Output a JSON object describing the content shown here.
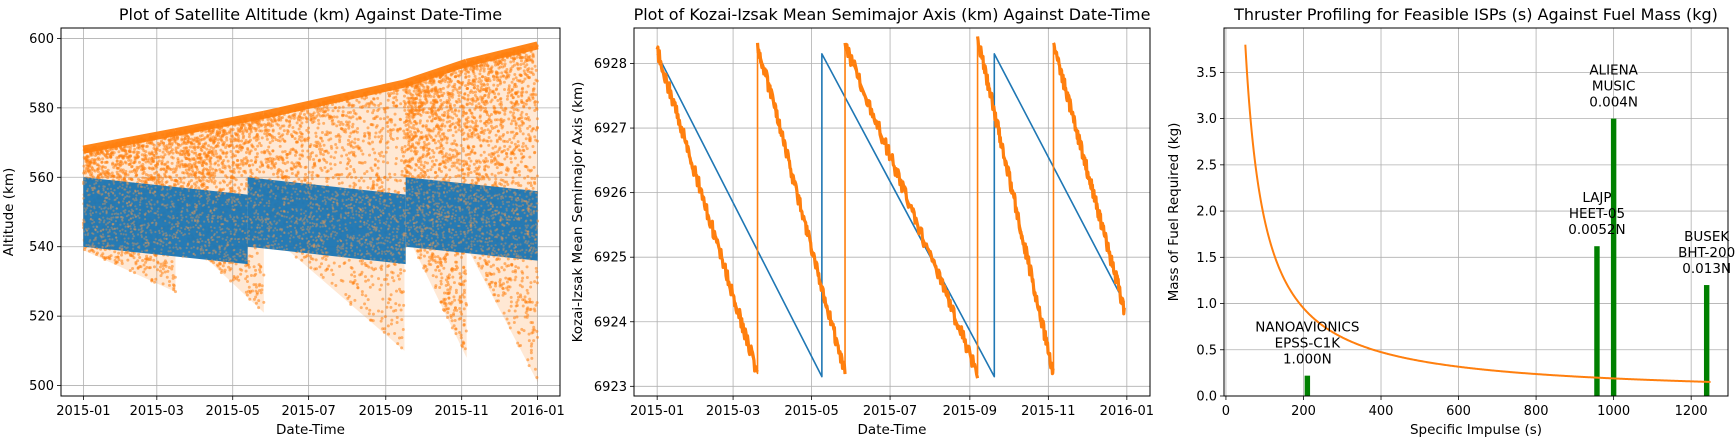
{
  "chart_data": [
    {
      "type": "scatter",
      "title": "Plot of Satellite Altitude (km) Against Date-Time",
      "xlabel": "Date-Time",
      "ylabel": "Altitude (km)",
      "xlim": [
        "2014-12-14",
        "2016-01-19"
      ],
      "ylim": [
        497,
        603
      ],
      "xticks": [
        "2015-01",
        "2015-03",
        "2015-05",
        "2015-07",
        "2015-09",
        "2015-11",
        "2016-01"
      ],
      "yticks": [
        500,
        520,
        540,
        560,
        580,
        600
      ],
      "grid": true,
      "series": [
        {
          "color": "#ff7f0e",
          "style": "scatter-band",
          "segments": [
            {
              "x": [
                "2015-01-01",
                "2015-03-16"
              ],
              "upper": [
                568,
                573
              ],
              "lower": [
                539,
                527
              ]
            },
            {
              "x": [
                "2015-03-16",
                "2015-05-26"
              ],
              "upper": [
                573,
                578
              ],
              "lower": [
                545,
                521
              ]
            },
            {
              "x": [
                "2015-05-26",
                "2015-09-16"
              ],
              "upper": [
                578,
                587
              ],
              "lower": [
                545,
                510
              ]
            },
            {
              "x": [
                "2015-09-16",
                "2015-11-05"
              ],
              "upper": [
                587,
                593
              ],
              "lower": [
                545,
                508
              ]
            },
            {
              "x": [
                "2015-11-05",
                "2016-01-01"
              ],
              "upper": [
                593,
                598
              ],
              "lower": [
                540,
                501
              ]
            }
          ]
        },
        {
          "color": "#1f77b4",
          "style": "band",
          "segments": [
            {
              "x": [
                "2015-01-01",
                "2015-05-13"
              ],
              "upper": [
                560,
                555
              ],
              "lower": [
                540,
                535
              ]
            },
            {
              "x": [
                "2015-05-13",
                "2015-09-17"
              ],
              "upper": [
                560,
                555
              ],
              "lower": [
                540,
                535
              ]
            },
            {
              "x": [
                "2015-09-17",
                "2016-01-01"
              ],
              "upper": [
                560,
                556
              ],
              "lower": [
                540,
                536
              ]
            }
          ]
        }
      ]
    },
    {
      "type": "line",
      "title": "Plot of Kozai-Izsak Mean Semimajor Axis (km) Against Date-Time",
      "xlabel": "Date-Time",
      "ylabel": "Kozai-Izsak Mean Semimajor Axis (km)",
      "xlim": [
        "2014-12-14",
        "2016-01-19"
      ],
      "ylim": [
        6922.85,
        6928.55
      ],
      "xticks": [
        "2015-01",
        "2015-03",
        "2015-05",
        "2015-07",
        "2015-09",
        "2015-11",
        "2016-01"
      ],
      "yticks": [
        6923,
        6924,
        6925,
        6926,
        6927,
        6928
      ],
      "grid": true,
      "series": [
        {
          "color": "#1f77b4",
          "points": [
            [
              "2015-01-01",
              6928.15
            ],
            [
              "2015-05-09",
              6923.15
            ],
            [
              "2015-05-09",
              6928.15
            ],
            [
              "2015-09-20",
              6923.15
            ],
            [
              "2015-09-20",
              6928.15
            ],
            [
              "2015-12-30",
              6924.3
            ]
          ]
        },
        {
          "color": "#ff7f0e",
          "points": [
            [
              "2015-01-01",
              6928.2
            ],
            [
              "2015-03-20",
              6923.2
            ],
            [
              "2015-03-20",
              6928.3
            ],
            [
              "2015-05-27",
              6923.2
            ],
            [
              "2015-05-27",
              6928.3
            ],
            [
              "2015-09-07",
              6923.2
            ],
            [
              "2015-09-07",
              6928.4
            ],
            [
              "2015-11-05",
              6923.2
            ],
            [
              "2015-11-05",
              6928.3
            ],
            [
              "2015-12-30",
              6924.2
            ]
          ]
        }
      ]
    },
    {
      "type": "bar",
      "title": "Thruster Profiling for Feasible ISPs (s) Against Fuel Mass (kg)",
      "xlabel": "Specific Impulse (s)",
      "ylabel": "Mass of Fuel Required (kg)",
      "xlim": [
        -5,
        1295
      ],
      "ylim": [
        0,
        3.98
      ],
      "xticks": [
        0,
        200,
        400,
        600,
        800,
        1000,
        1200
      ],
      "yticks": [
        0.0,
        0.5,
        1.0,
        1.5,
        2.0,
        2.5,
        3.0,
        3.5
      ],
      "ytick_labels": [
        "0.0",
        "0.5",
        "1.0",
        "1.5",
        "2.0",
        "2.5",
        "3.0",
        "3.5"
      ],
      "grid": true,
      "curve": {
        "color": "#ff7f0e",
        "x_range": [
          50,
          1250
        ],
        "y_at_1000": 0.19
      },
      "bars": [
        {
          "x": 210,
          "value": 0.22,
          "color": "green",
          "label": [
            "NANOAVIONICS",
            "EPSS-C1K",
            "1.000N"
          ]
        },
        {
          "x": 957,
          "value": 1.62,
          "color": "green",
          "label": [
            "LAJP",
            "HEET-05",
            "0.0052N"
          ]
        },
        {
          "x": 1000,
          "value": 3.0,
          "color": "green",
          "label": [
            "ALIENA",
            "MUSIC",
            "0.004N"
          ]
        },
        {
          "x": 1240,
          "value": 1.2,
          "color": "green",
          "label": [
            "BUSEK",
            "BHT-200",
            "0.013N"
          ]
        }
      ]
    }
  ]
}
